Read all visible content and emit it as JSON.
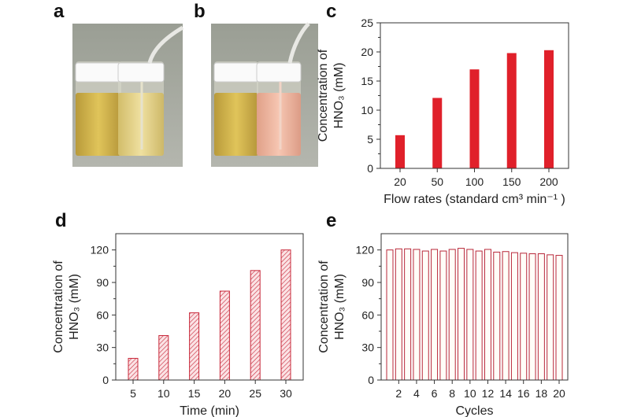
{
  "panel_labels": {
    "a": "a",
    "b": "b",
    "c": "c",
    "d": "d",
    "e": "e"
  },
  "chart_data": [
    {
      "panel": "c",
      "type": "bar",
      "categories": [
        "20",
        "50",
        "100",
        "150",
        "200"
      ],
      "values": [
        5.7,
        12.1,
        17.0,
        19.8,
        20.3
      ],
      "xlabel": "Flow rates (standard cm³ min⁻¹ )",
      "ylabel_line1": "Concentration of",
      "ylabel_line2": "HNO₃ (mM)",
      "ylim": [
        0,
        25
      ],
      "yticks": [
        0,
        5,
        10,
        15,
        20,
        25
      ],
      "style": "solid",
      "color": "#e0202a",
      "grid": false
    },
    {
      "panel": "d",
      "type": "bar",
      "categories": [
        "5",
        "10",
        "15",
        "20",
        "25",
        "30"
      ],
      "values": [
        20,
        41,
        62,
        82,
        101,
        120
      ],
      "xlabel": "Time (min)",
      "ylabel_line1": "Concentration of",
      "ylabel_line2": "HNO₃ (mM)",
      "ylim": [
        0,
        135
      ],
      "yticks": [
        0,
        30,
        60,
        90,
        120
      ],
      "style": "hatched",
      "color": "#c8283a",
      "grid": false
    },
    {
      "panel": "e",
      "type": "bar",
      "categories": [
        "1",
        "2",
        "3",
        "4",
        "5",
        "6",
        "7",
        "8",
        "9",
        "10",
        "11",
        "12",
        "13",
        "14",
        "15",
        "16",
        "17",
        "18",
        "19",
        "20"
      ],
      "values": [
        120,
        121,
        121,
        120.5,
        119,
        120.5,
        119,
        120.5,
        121.5,
        120.5,
        119,
        120.5,
        118,
        118.5,
        117.5,
        117,
        116.5,
        116.5,
        115.5,
        115
      ],
      "xticklabels": [
        "2",
        "4",
        "6",
        "8",
        "10",
        "12",
        "14",
        "16",
        "18",
        "20"
      ],
      "xlabel": "Cycles",
      "ylabel_line1": "Concentration of",
      "ylabel_line2": "HNO₃ (mM)",
      "ylim": [
        0,
        135
      ],
      "yticks": [
        0,
        30,
        60,
        90,
        120
      ],
      "style": "outline",
      "color": "#b8283a",
      "grid": false
    }
  ]
}
